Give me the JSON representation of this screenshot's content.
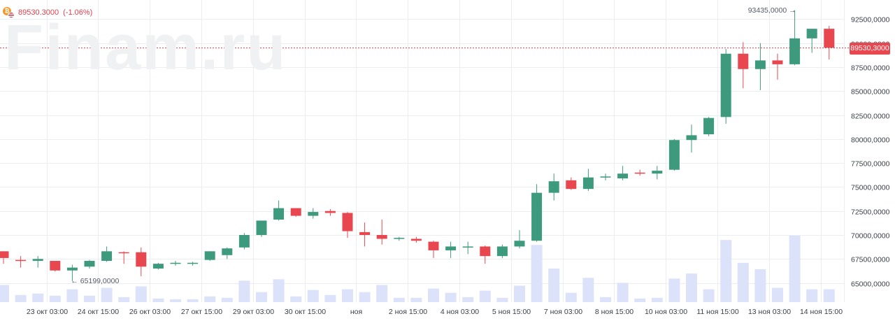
{
  "header": {
    "price": "89530.3000",
    "change": "(-1.06%)"
  },
  "watermark": "Finam.ru",
  "last_price_tag": "89530,3000",
  "callouts": {
    "high": "93435,0000 →",
    "low": "← 65199,0000"
  },
  "colors": {
    "up": "#3d9a7c",
    "down": "#e8474f",
    "volume": "#dde2fb",
    "grid": "#ebedf0",
    "last_price_line": "#e8474f"
  },
  "chart_data": {
    "type": "candlestick",
    "title": "",
    "last_price": 89530.3,
    "high_marker": 93435,
    "low_marker": 65199,
    "ylim": [
      63000,
      94500
    ],
    "yticks": [
      92500,
      90000,
      87500,
      85000,
      82500,
      80000,
      77500,
      75000,
      72500,
      70000,
      67500,
      65000
    ],
    "ytick_labels": [
      "92500,0000",
      "90000,0000",
      "87500,0000",
      "85000,0000",
      "82500,0000",
      "80000,0000",
      "77500,0000",
      "75000,0000",
      "72500,0000",
      "70000,0000",
      "67500,0000",
      "65000,0000"
    ],
    "xtick_labels": [
      "23 окт 03:00",
      "24 окт 15:00",
      "26 окт 03:00",
      "27 окт 15:00",
      "29 окт 03:00",
      "30 окт 15:00",
      "ноя",
      "2 ноя 15:00",
      "4 ноя 03:00",
      "5 ноя 15:00",
      "7 ноя 03:00",
      "8 ноя 15:00",
      "10 ноя 03:00",
      "11 ноя 15:00",
      "13 ноя 03:00",
      "14 ноя 15:00"
    ],
    "xtick_candle_index": [
      2.5,
      5.5,
      8.5,
      11.5,
      14.5,
      17.5,
      20.5,
      23.5,
      26.5,
      29.5,
      32.5,
      35.5,
      38.5,
      41.5,
      44.5,
      47.5
    ],
    "candles": [
      {
        "o": 68300,
        "h": 68300,
        "l": 67000,
        "c": 67600
      },
      {
        "o": 67400,
        "h": 67800,
        "l": 66600,
        "c": 67300
      },
      {
        "o": 67300,
        "h": 67800,
        "l": 66600,
        "c": 67500
      },
      {
        "o": 67300,
        "h": 67300,
        "l": 66200,
        "c": 66300
      },
      {
        "o": 66300,
        "h": 66900,
        "l": 65199,
        "c": 66600
      },
      {
        "o": 66700,
        "h": 67400,
        "l": 66500,
        "c": 67300
      },
      {
        "o": 67300,
        "h": 68800,
        "l": 67200,
        "c": 68300
      },
      {
        "o": 68200,
        "h": 68300,
        "l": 67000,
        "c": 68100
      },
      {
        "o": 68200,
        "h": 68700,
        "l": 65700,
        "c": 66700
      },
      {
        "o": 66500,
        "h": 67100,
        "l": 66400,
        "c": 67000
      },
      {
        "o": 67000,
        "h": 67300,
        "l": 66800,
        "c": 67100
      },
      {
        "o": 67000,
        "h": 67200,
        "l": 66800,
        "c": 67100
      },
      {
        "o": 67400,
        "h": 68300,
        "l": 67300,
        "c": 68300
      },
      {
        "o": 67900,
        "h": 68700,
        "l": 67500,
        "c": 68600
      },
      {
        "o": 68700,
        "h": 70200,
        "l": 68500,
        "c": 70000
      },
      {
        "o": 70000,
        "h": 71500,
        "l": 69800,
        "c": 71500
      },
      {
        "o": 71600,
        "h": 73600,
        "l": 71500,
        "c": 72800
      },
      {
        "o": 72800,
        "h": 72800,
        "l": 71900,
        "c": 72000
      },
      {
        "o": 72000,
        "h": 72800,
        "l": 71700,
        "c": 72400
      },
      {
        "o": 72500,
        "h": 72700,
        "l": 72000,
        "c": 72300
      },
      {
        "o": 72300,
        "h": 72400,
        "l": 69700,
        "c": 70400
      },
      {
        "o": 70300,
        "h": 71300,
        "l": 68800,
        "c": 70000
      },
      {
        "o": 70000,
        "h": 71600,
        "l": 69000,
        "c": 69600
      },
      {
        "o": 69600,
        "h": 69800,
        "l": 69400,
        "c": 69700
      },
      {
        "o": 69600,
        "h": 69800,
        "l": 69200,
        "c": 69400
      },
      {
        "o": 69300,
        "h": 69400,
        "l": 67600,
        "c": 68400
      },
      {
        "o": 68400,
        "h": 69300,
        "l": 67600,
        "c": 68800
      },
      {
        "o": 68700,
        "h": 69300,
        "l": 68000,
        "c": 68800
      },
      {
        "o": 68800,
        "h": 68900,
        "l": 67000,
        "c": 67800
      },
      {
        "o": 67800,
        "h": 69000,
        "l": 67600,
        "c": 68800
      },
      {
        "o": 68800,
        "h": 70500,
        "l": 68600,
        "c": 69400
      },
      {
        "o": 69400,
        "h": 75300,
        "l": 69300,
        "c": 74400
      },
      {
        "o": 74400,
        "h": 76400,
        "l": 73600,
        "c": 75600
      },
      {
        "o": 75700,
        "h": 76000,
        "l": 74700,
        "c": 74800
      },
      {
        "o": 74800,
        "h": 76900,
        "l": 74600,
        "c": 76000
      },
      {
        "o": 76000,
        "h": 76400,
        "l": 75700,
        "c": 76100
      },
      {
        "o": 75900,
        "h": 77200,
        "l": 75700,
        "c": 76400
      },
      {
        "o": 76500,
        "h": 76800,
        "l": 76200,
        "c": 76400
      },
      {
        "o": 76400,
        "h": 77200,
        "l": 75800,
        "c": 76700
      },
      {
        "o": 76800,
        "h": 80000,
        "l": 76700,
        "c": 79900
      },
      {
        "o": 79900,
        "h": 81500,
        "l": 78600,
        "c": 80400
      },
      {
        "o": 80500,
        "h": 82300,
        "l": 80300,
        "c": 82200
      },
      {
        "o": 82300,
        "h": 89400,
        "l": 81600,
        "c": 88900
      },
      {
        "o": 88900,
        "h": 90100,
        "l": 85300,
        "c": 87300
      },
      {
        "o": 87300,
        "h": 90000,
        "l": 85100,
        "c": 88200
      },
      {
        "o": 88200,
        "h": 88900,
        "l": 86200,
        "c": 87800
      },
      {
        "o": 87800,
        "h": 93435,
        "l": 87700,
        "c": 90500
      },
      {
        "o": 90500,
        "h": 91500,
        "l": 89000,
        "c": 91500
      },
      {
        "o": 91500,
        "h": 91800,
        "l": 88300,
        "c": 89530
      }
    ],
    "volume": [
      24,
      10,
      12,
      9,
      18,
      9,
      20,
      7,
      22,
      5,
      4,
      4,
      8,
      6,
      30,
      14,
      32,
      8,
      17,
      10,
      18,
      14,
      24,
      6,
      6,
      19,
      13,
      7,
      16,
      6,
      23,
      80,
      47,
      13,
      34,
      7,
      27,
      5,
      6,
      33,
      40,
      18,
      87,
      55,
      46,
      20,
      93,
      18,
      18
    ]
  }
}
